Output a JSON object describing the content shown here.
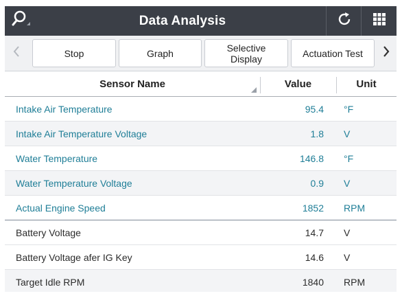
{
  "header": {
    "title": "Data Analysis",
    "icons": [
      "search-icon",
      "refresh-icon",
      "grid-menu-icon"
    ]
  },
  "toolbar": {
    "buttons": [
      {
        "label": "Stop"
      },
      {
        "label": "Graph"
      },
      {
        "label": "Selective Display"
      },
      {
        "label": "Actuation Test"
      }
    ],
    "prev_icon": "chevron-left-icon",
    "next_icon": "chevron-right-icon"
  },
  "table": {
    "columns": {
      "name": "Sensor Name",
      "value": "Value",
      "unit": "Unit"
    },
    "rows": [
      {
        "name": "Intake Air Temperature",
        "value": "95.4",
        "unit": "°F",
        "highlighted": true
      },
      {
        "name": "Intake Air Temperature Voltage",
        "value": "1.8",
        "unit": "V",
        "highlighted": true
      },
      {
        "name": "Water Temperature",
        "value": "146.8",
        "unit": "°F",
        "highlighted": true
      },
      {
        "name": "Water Temperature Voltage",
        "value": "0.9",
        "unit": "V",
        "highlighted": true
      },
      {
        "name": "Actual Engine Speed",
        "value": "1852",
        "unit": "RPM",
        "highlighted": true
      },
      {
        "name": "Battery Voltage",
        "value": "14.7",
        "unit": "V",
        "highlighted": false
      },
      {
        "name": "Battery Voltage afer IG Key",
        "value": "14.6",
        "unit": "V",
        "highlighted": false
      },
      {
        "name": "Target Idle RPM",
        "value": "1840",
        "unit": "RPM",
        "highlighted": false
      }
    ]
  },
  "colors": {
    "header_bg": "#3b3f47",
    "highlight_text": "#1f7e97",
    "plain_text": "#2b2b2b"
  }
}
